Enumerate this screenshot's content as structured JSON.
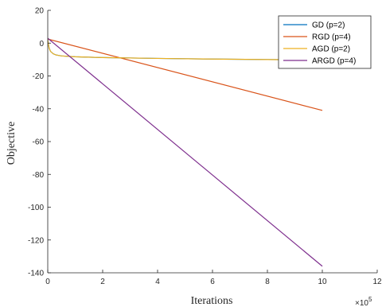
{
  "chart_data": {
    "type": "line",
    "title": "",
    "xlabel": "Iterations",
    "ylabel": "Objective",
    "xlim": [
      0,
      12
    ],
    "ylim": [
      -140,
      20
    ],
    "x_scale_exponent_label": "×10",
    "x_scale_exponent_power": "5",
    "xticks": [
      0,
      2,
      4,
      6,
      8,
      10,
      12
    ],
    "xtick_labels": [
      "0",
      "2",
      "4",
      "6",
      "8",
      "10",
      "12"
    ],
    "yticks": [
      -140,
      -120,
      -100,
      -80,
      -60,
      -40,
      -20,
      0,
      20
    ],
    "ytick_labels": [
      "-140",
      "-120",
      "-100",
      "-80",
      "-60",
      "-40",
      "-20",
      "0",
      "20"
    ],
    "legend_position": "top-right",
    "grid": false,
    "series": [
      {
        "name": "GD (p=2)",
        "color": "#0072BD",
        "x": [
          0,
          0.05,
          0.1,
          0.2,
          0.3,
          0.5,
          1,
          2,
          4,
          6,
          8,
          10
        ],
        "y": [
          2,
          -3,
          -5,
          -6.5,
          -7.2,
          -7.8,
          -8.3,
          -8.8,
          -9.3,
          -9.7,
          -10.0,
          -10.3
        ]
      },
      {
        "name": "RGD (p=4)",
        "color": "#D95319",
        "x": [
          0,
          10
        ],
        "y": [
          2.5,
          -41
        ]
      },
      {
        "name": "AGD (p=2)",
        "color": "#EDB120",
        "x": [
          0,
          0.05,
          0.1,
          0.2,
          0.3,
          0.5,
          1,
          2,
          4,
          6,
          8,
          10
        ],
        "y": [
          2,
          -3,
          -5,
          -6.5,
          -7.2,
          -7.8,
          -8.3,
          -8.8,
          -9.3,
          -9.7,
          -10.0,
          -10.3
        ]
      },
      {
        "name": "ARGD (p=4)",
        "color": "#7E2F8E",
        "x": [
          0,
          10
        ],
        "y": [
          3,
          -136
        ]
      }
    ]
  }
}
